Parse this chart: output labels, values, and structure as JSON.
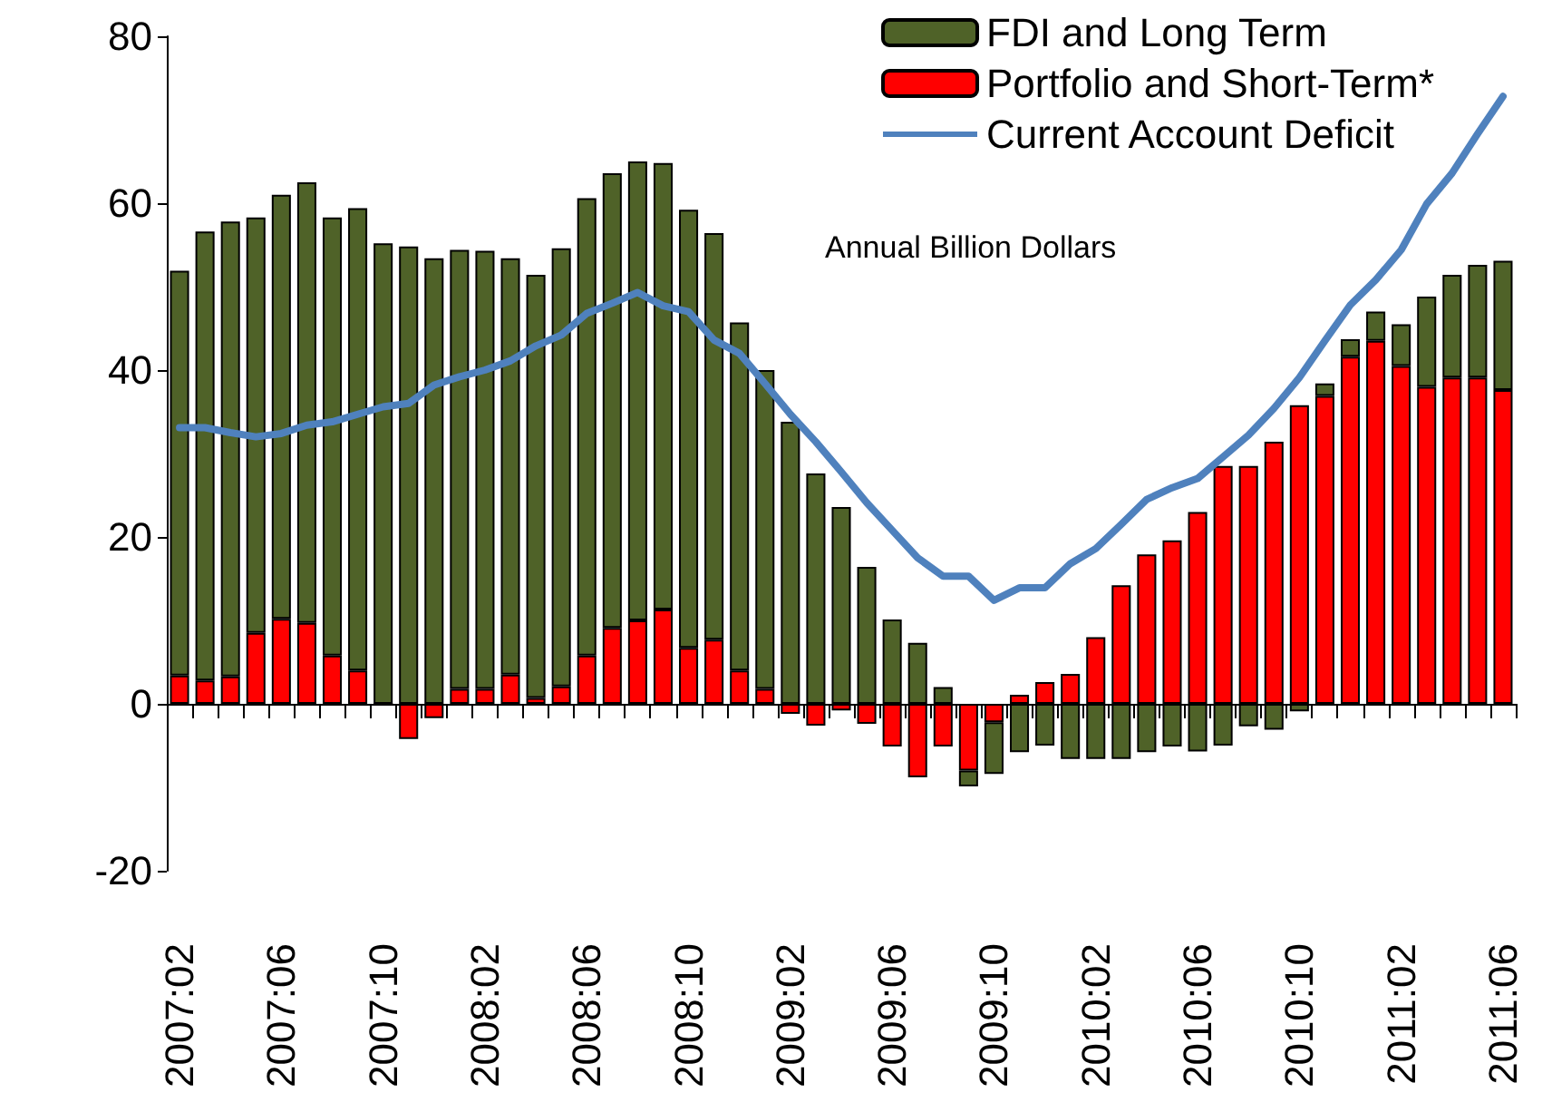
{
  "chart_data": {
    "type": "bar",
    "stacked": true,
    "categories": [
      "2007:02",
      null,
      null,
      null,
      "2007:06",
      null,
      null,
      null,
      "2007:10",
      null,
      null,
      null,
      "2008:02",
      null,
      null,
      null,
      "2008:06",
      null,
      null,
      null,
      "2008:10",
      null,
      null,
      null,
      "2009:02",
      null,
      null,
      null,
      "2009:06",
      null,
      null,
      null,
      "2009:10",
      null,
      null,
      null,
      "2010:02",
      null,
      null,
      null,
      "2010:06",
      null,
      null,
      null,
      "2010:10",
      null,
      null,
      null,
      "2011:02",
      null,
      null,
      null,
      "2011:06"
    ],
    "series": [
      {
        "name": "Portfolio and Short-Term*",
        "color": "#ff0000",
        "values": [
          3.4,
          2.8,
          3.3,
          8.5,
          10.2,
          9.7,
          5.8,
          4.0,
          0,
          -4.2,
          -1.7,
          1.8,
          1.8,
          3.5,
          0.7,
          2.1,
          5.8,
          9.1,
          10.0,
          11.3,
          6.7,
          7.7,
          4.0,
          1.8,
          -1.2,
          -2.6,
          -0.8,
          -2.4,
          -5.1,
          -8.8,
          -5.1,
          -8.0,
          -2.2,
          1.1,
          2.6,
          3.6,
          8.0,
          14.2,
          17.9,
          19.6,
          23.0,
          28.5,
          28.5,
          31.4,
          35.8,
          36.9,
          41.6,
          43.5,
          40.5,
          38.0,
          39.1,
          39.1,
          37.6
        ]
      },
      {
        "name": "FDI and Long Term",
        "color": "#4f6228",
        "values": [
          48.5,
          53.8,
          54.5,
          49.8,
          50.8,
          52.8,
          52.5,
          55.4,
          55.2,
          54.8,
          53.4,
          52.6,
          52.5,
          49.9,
          50.7,
          52.5,
          54.8,
          54.5,
          55.0,
          53.5,
          52.5,
          48.7,
          41.7,
          38.2,
          33.8,
          27.6,
          23.6,
          16.4,
          10.1,
          7.3,
          2.0,
          -1.9,
          -6.2,
          -5.8,
          -5.0,
          -6.6,
          -6.6,
          -6.6,
          -5.8,
          -5.1,
          -5.7,
          -5.0,
          -2.7,
          -3.1,
          -0.9,
          1.5,
          2.1,
          3.5,
          5.0,
          10.8,
          12.3,
          13.5,
          15.5
        ]
      },
      {
        "name": "Current Account Deficit",
        "type": "line",
        "color": "#4f81bd",
        "values": [
          33.1,
          33.1,
          32.5,
          32.0,
          32.4,
          33.4,
          33.8,
          34.7,
          35.6,
          36.0,
          38.2,
          39.2,
          40.0,
          41.1,
          42.9,
          44.2,
          46.8,
          48.0,
          49.3,
          47.7,
          47.0,
          43.6,
          42.0,
          38.4,
          34.7,
          31.4,
          27.8,
          24.1,
          20.8,
          17.5,
          15.3,
          15.3,
          12.4,
          13.9,
          13.9,
          16.8,
          18.6,
          21.5,
          24.5,
          25.9,
          27.0,
          29.6,
          32.2,
          35.4,
          39.1,
          43.5,
          47.8,
          50.8,
          54.4,
          59.9,
          63.6,
          68.3,
          72.8
        ]
      }
    ],
    "ylim": [
      -20,
      80
    ],
    "yticks": [
      -20,
      0,
      20,
      40,
      60,
      80
    ],
    "legend": "top right",
    "marker": "none",
    "line_style": "solid",
    "annotations": [
      "Annual Billion Dollars"
    ]
  }
}
